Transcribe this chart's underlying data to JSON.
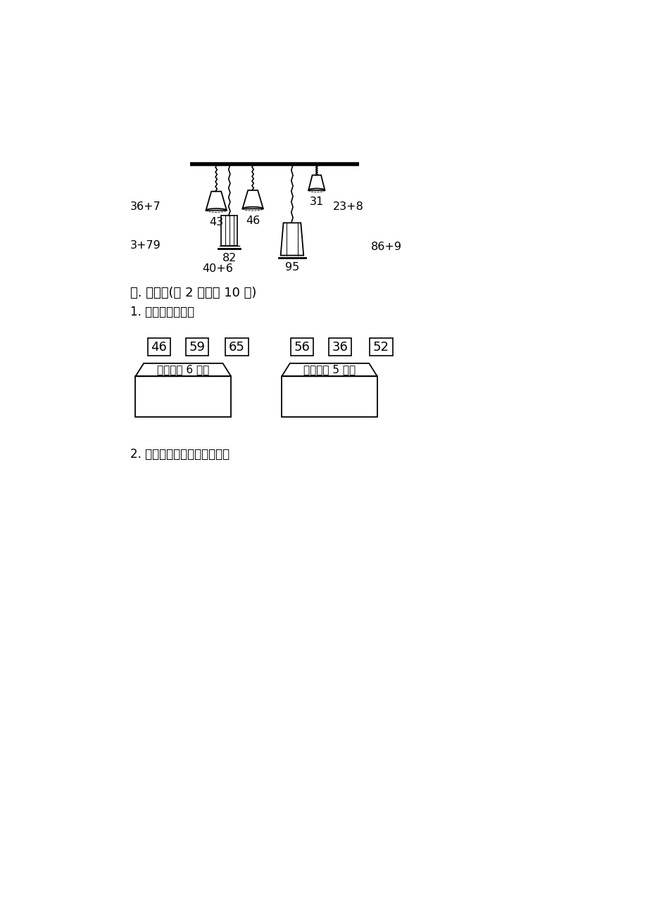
{
  "bg_color": "#ffffff",
  "section_title": "五. 作图题(共2 题，共10分)",
  "sub1_title": "1. 按要求选一选。",
  "sub2_title": "2. 连一连．帮小动物找号码。",
  "box_label_left": "个位上是6的数",
  "box_label_right": "十位上是5的数",
  "number_tags_left": [
    "46",
    "59",
    "65"
  ],
  "number_tags_right": [
    "56",
    "36",
    "52"
  ]
}
